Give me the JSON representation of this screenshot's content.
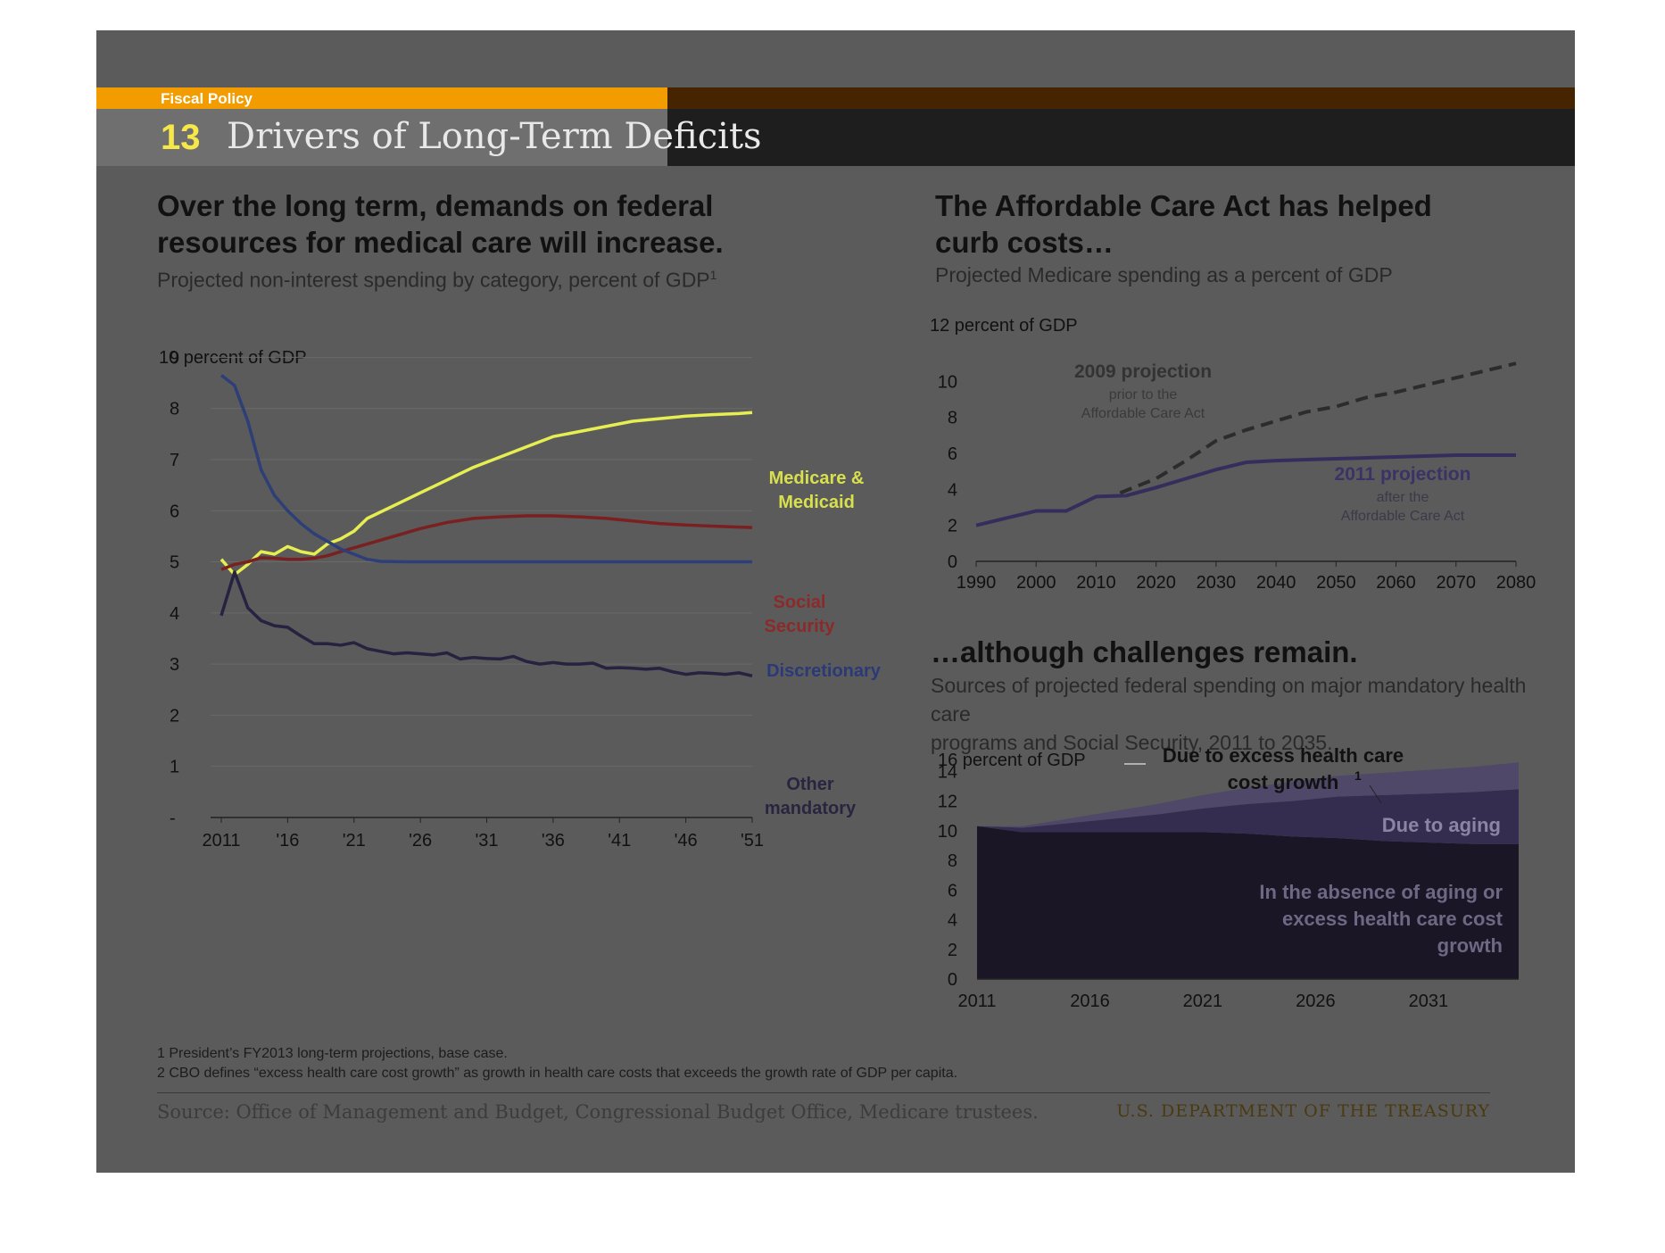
{
  "header": {
    "category": "Fiscal Policy",
    "slide_number": "13",
    "title": "Drivers of Long-Term Deficits"
  },
  "left_panel": {
    "heading_line1": "Over the long term, demands on federal",
    "heading_line2": "resources for medical care will increase.",
    "subtitle": "Projected non-interest spending by category, percent of GDP",
    "subtitle_sup": "1"
  },
  "right_top_panel": {
    "heading_line1": "The Affordable Care Act has helped",
    "heading_line2": "curb costs…",
    "subtitle": "Projected Medicare spending as a percent of GDP"
  },
  "right_bottom_panel": {
    "heading": "…although challenges remain.",
    "subtitle_line1": "Sources of projected federal spending on major mandatory health care",
    "subtitle_line2": "programs and Social Security, 2011 to 2035."
  },
  "footer": {
    "footnote1": "1 President’s FY2013 long-term projections, base case.",
    "footnote2": "2 CBO defines “excess health care cost growth” as growth in health care costs that exceeds the growth rate of GDP per capita.",
    "source": "Source: Office of Management and Budget, Congressional Budget Office, Medicare trustees.",
    "department": "U.S. DEPARTMENT OF THE TREASURY"
  },
  "colors": {
    "medicare": "#e6ee52",
    "social_security": "#7a2020",
    "discretionary": "#2e3f78",
    "other_mandatory": "#262240",
    "proj2009": "#2c2c2c",
    "proj2011": "#352e5c",
    "area_base": "#1a1626",
    "area_aging": "#352d50",
    "area_excess": "#4f4868"
  },
  "chart_data": [
    {
      "type": "line",
      "ylabel": "10 percent of GDP",
      "ylim": [
        0,
        10
      ],
      "yticks": [
        "-",
        "1",
        "2",
        "3",
        "4",
        "5",
        "6",
        "7",
        "8",
        "9"
      ],
      "xticks": [
        "2011",
        "'16",
        "'21",
        "'26",
        "'31",
        "'36",
        "'41",
        "'46",
        "'51"
      ],
      "xlim": [
        2011,
        2051
      ],
      "series": [
        {
          "name": "Medicare & Medicaid",
          "label_lines": [
            "Medicare &",
            "Medicaid"
          ],
          "color_key": "medicare",
          "x": [
            2011,
            2012,
            2013,
            2014,
            2015,
            2016,
            2017,
            2018,
            2019,
            2020,
            2021,
            2022,
            2024,
            2026,
            2028,
            2030,
            2032,
            2034,
            2036,
            2038,
            2040,
            2042,
            2044,
            2046,
            2048,
            2050,
            2051
          ],
          "y": [
            5.05,
            4.75,
            4.95,
            5.2,
            5.15,
            5.3,
            5.2,
            5.15,
            5.35,
            5.45,
            5.6,
            5.85,
            6.1,
            6.35,
            6.6,
            6.85,
            7.05,
            7.25,
            7.45,
            7.55,
            7.65,
            7.75,
            7.8,
            7.85,
            7.88,
            7.9,
            7.92
          ]
        },
        {
          "name": "Social Security",
          "label_lines": [
            "Social",
            "Security"
          ],
          "color_key": "social_security",
          "x": [
            2011,
            2012,
            2013,
            2014,
            2015,
            2016,
            2017,
            2018,
            2019,
            2020,
            2022,
            2024,
            2026,
            2028,
            2030,
            2032,
            2034,
            2036,
            2038,
            2040,
            2042,
            2044,
            2046,
            2048,
            2050,
            2051
          ],
          "y": [
            4.85,
            4.95,
            5.0,
            5.08,
            5.07,
            5.05,
            5.05,
            5.07,
            5.12,
            5.2,
            5.35,
            5.5,
            5.65,
            5.77,
            5.85,
            5.88,
            5.9,
            5.9,
            5.88,
            5.85,
            5.8,
            5.75,
            5.72,
            5.7,
            5.68,
            5.67
          ]
        },
        {
          "name": "Discretionary",
          "label_lines": [
            "Discretionary"
          ],
          "color_key": "discretionary",
          "x": [
            2011,
            2012,
            2013,
            2014,
            2015,
            2016,
            2017,
            2018,
            2019,
            2020,
            2021,
            2022,
            2023,
            2025,
            2030,
            2040,
            2051
          ],
          "y": [
            8.65,
            8.45,
            7.75,
            6.8,
            6.3,
            6.0,
            5.75,
            5.55,
            5.4,
            5.25,
            5.15,
            5.05,
            5.01,
            5.0,
            5.0,
            5.0,
            5.0
          ]
        },
        {
          "name": "Other mandatory",
          "label_lines": [
            "Other",
            "mandatory"
          ],
          "color_key": "other_mandatory",
          "x": [
            2011,
            2012,
            2013,
            2014,
            2015,
            2016,
            2017,
            2018,
            2019,
            2020,
            2021,
            2022,
            2023,
            2024,
            2025,
            2026,
            2027,
            2028,
            2029,
            2030,
            2031,
            2032,
            2033,
            2034,
            2035,
            2036,
            2037,
            2038,
            2039,
            2040,
            2041,
            2042,
            2043,
            2044,
            2045,
            2046,
            2047,
            2048,
            2049,
            2050,
            2051
          ],
          "y": [
            3.95,
            4.8,
            4.1,
            3.85,
            3.75,
            3.72,
            3.55,
            3.4,
            3.4,
            3.37,
            3.42,
            3.3,
            3.25,
            3.2,
            3.22,
            3.2,
            3.18,
            3.22,
            3.1,
            3.13,
            3.11,
            3.1,
            3.15,
            3.05,
            3.0,
            3.03,
            3.0,
            3.0,
            3.02,
            2.92,
            2.93,
            2.92,
            2.9,
            2.92,
            2.85,
            2.8,
            2.83,
            2.82,
            2.8,
            2.83,
            2.77
          ]
        }
      ]
    },
    {
      "type": "line",
      "ylabel": "12 percent of GDP",
      "ylim": [
        0,
        12
      ],
      "yticks": [
        "0",
        "2",
        "4",
        "6",
        "8",
        "10"
      ],
      "xticks": [
        "1990",
        "2000",
        "2010",
        "2020",
        "2030",
        "2040",
        "2050",
        "2060",
        "2070",
        "2080"
      ],
      "xlim": [
        1990,
        2080
      ],
      "series": [
        {
          "name": "2009 projection",
          "label_lines": [
            "2009 projection"
          ],
          "note_lines": [
            "prior to the",
            "Affordable Care Act"
          ],
          "color_key": "proj2009",
          "dashed": true,
          "x": [
            2014,
            2020,
            2025,
            2030,
            2035,
            2040,
            2045,
            2050,
            2055,
            2060,
            2065,
            2070,
            2075,
            2080
          ],
          "y": [
            3.8,
            4.6,
            5.6,
            6.7,
            7.3,
            7.8,
            8.3,
            8.6,
            9.1,
            9.4,
            9.8,
            10.2,
            10.6,
            11.0
          ]
        },
        {
          "name": "2011 projection",
          "label_lines": [
            "2011 projection"
          ],
          "note_lines": [
            "after the",
            "Affordable Care Act"
          ],
          "color_key": "proj2011",
          "dashed": false,
          "x": [
            1990,
            1995,
            2000,
            2005,
            2010,
            2015,
            2020,
            2025,
            2030,
            2035,
            2040,
            2045,
            2050,
            2055,
            2060,
            2065,
            2070,
            2075,
            2080
          ],
          "y": [
            2.0,
            2.4,
            2.8,
            2.8,
            3.6,
            3.65,
            4.1,
            4.6,
            5.1,
            5.5,
            5.6,
            5.65,
            5.7,
            5.75,
            5.8,
            5.85,
            5.9,
            5.9,
            5.9
          ]
        }
      ]
    },
    {
      "type": "area",
      "ylabel": "16 percent of GDP",
      "ylim": [
        0,
        16
      ],
      "yticks": [
        "0",
        "2",
        "4",
        "6",
        "8",
        "10",
        "12",
        "14"
      ],
      "xticks": [
        "2011",
        "2016",
        "2021",
        "2026",
        "2031"
      ],
      "xlim": [
        2011,
        2035
      ],
      "x": [
        2011,
        2013,
        2015,
        2017,
        2019,
        2021,
        2023,
        2025,
        2027,
        2029,
        2031,
        2033,
        2035
      ],
      "series": [
        {
          "name": "In the absence of aging or excess health care cost growth",
          "label_lines": [
            "In the absence of aging or",
            "excess health care cost",
            "growth"
          ],
          "color_key": "area_base",
          "values": [
            10.3,
            9.9,
            9.9,
            9.9,
            9.9,
            9.9,
            9.8,
            9.6,
            9.5,
            9.3,
            9.2,
            9.1,
            9.1
          ]
        },
        {
          "name": "Due to aging",
          "label_lines": [
            "Due to aging"
          ],
          "color_key": "area_aging",
          "values": [
            0.0,
            0.3,
            0.6,
            0.9,
            1.2,
            1.6,
            2.0,
            2.4,
            2.8,
            3.1,
            3.3,
            3.5,
            3.7
          ]
        },
        {
          "name": "Due to excess health care cost growth",
          "label_lines": [
            "Due to excess  health care",
            "cost growth"
          ],
          "label_sup": "1",
          "color_key": "area_excess",
          "values": [
            0.0,
            0.1,
            0.3,
            0.5,
            0.7,
            0.9,
            1.1,
            1.3,
            1.4,
            1.5,
            1.6,
            1.7,
            1.8
          ]
        }
      ]
    }
  ]
}
